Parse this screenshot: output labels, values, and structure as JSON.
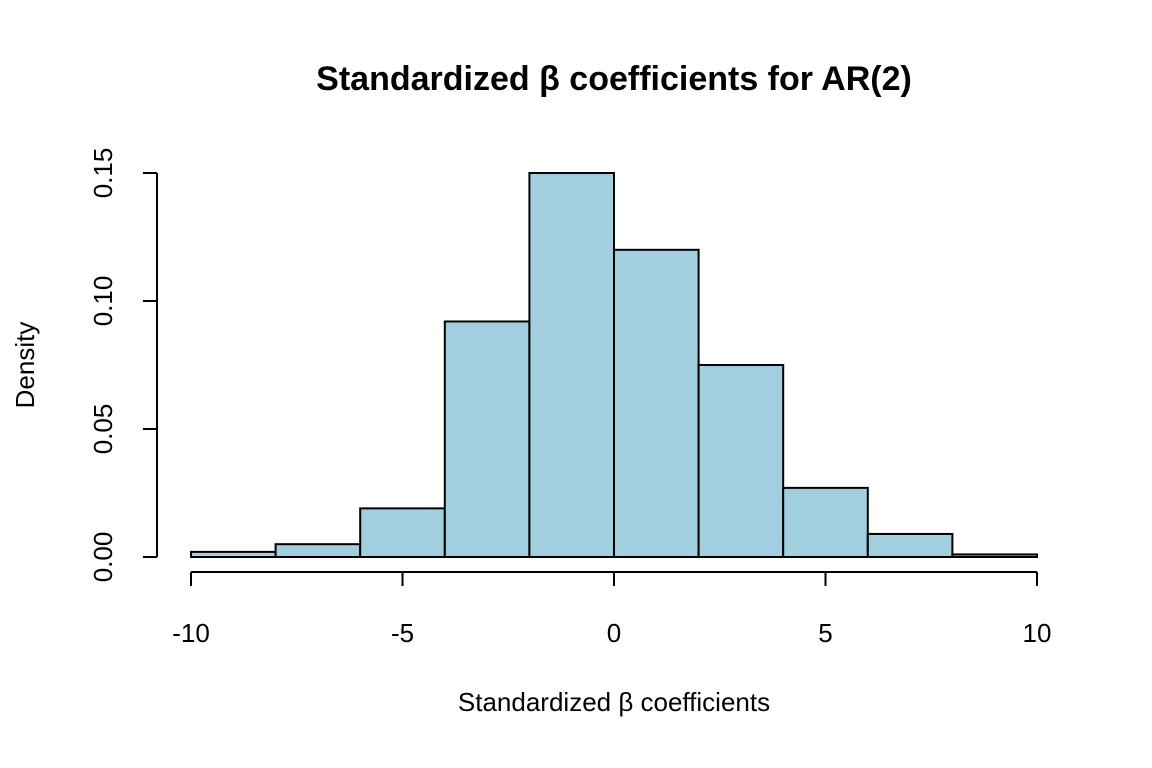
{
  "chart_data": {
    "type": "bar",
    "subtype": "histogram",
    "title": "Standardized β coefficients for AR(2)",
    "xlabel": "Standardized β coefficients",
    "ylabel": "Density",
    "bin_edges": [
      -10,
      -8,
      -6,
      -4,
      -2,
      0,
      2,
      4,
      6,
      8,
      10
    ],
    "values": [
      0.002,
      0.005,
      0.019,
      0.092,
      0.15,
      0.12,
      0.075,
      0.027,
      0.009,
      0.001
    ],
    "xlim": [
      -10,
      10
    ],
    "ylim": [
      0,
      0.15
    ],
    "x_ticks": [
      -10,
      -5,
      0,
      5,
      10
    ],
    "x_tick_labels": [
      "-10",
      "-5",
      "0",
      "5",
      "10"
    ],
    "y_ticks": [
      0,
      0.05,
      0.1,
      0.15
    ],
    "y_tick_labels": [
      "0.00",
      "0.05",
      "0.10",
      "0.15"
    ],
    "bar_color": "#a1cfe0",
    "grid": false,
    "legend": "none"
  }
}
